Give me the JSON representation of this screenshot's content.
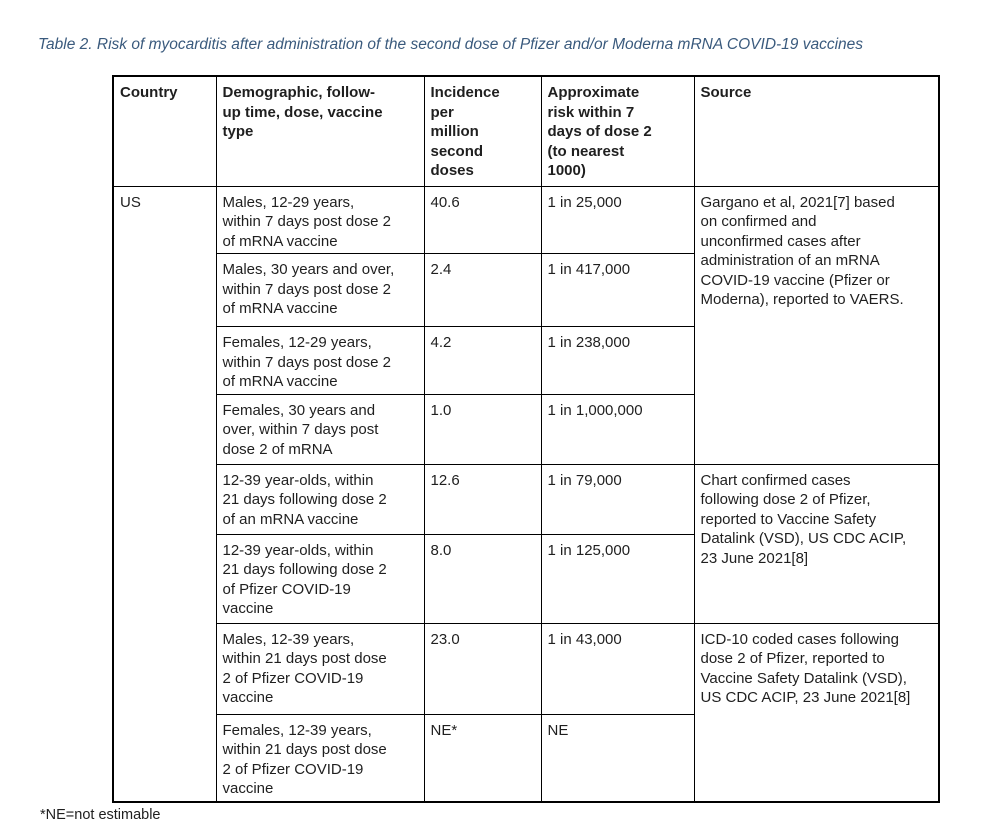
{
  "page": {
    "title": "Table 2. Risk of myocarditis after administration of the second dose of Pfizer and/or Moderna mRNA COVID-19 vaccines",
    "footnote": "*NE=not estimable"
  },
  "colors": {
    "title_text": "#3a5a7d",
    "body_text": "#1f1f1f",
    "table_border": "#000000",
    "page_background": "#ffffff"
  },
  "table": {
    "headers": {
      "country": "Country",
      "demographic": "Demographic, follow-\nup time, dose, vaccine\ntype",
      "incidence": "Incidence\nper\nmillion\nsecond\ndoses",
      "risk": "Approximate\nrisk within 7\ndays of dose 2\n(to nearest\n1000)",
      "source": "Source"
    },
    "country": "US",
    "rows": [
      {
        "demographic": "Males, 12-29 years,\nwithin 7 days post dose 2\nof mRNA vaccine",
        "incidence": "40.6",
        "risk": "1 in 25,000"
      },
      {
        "demographic": "Males, 30 years and over,\nwithin 7 days post dose 2\nof mRNA vaccine",
        "incidence": "2.4",
        "risk": "1 in 417,000"
      },
      {
        "demographic": "Females, 12-29 years,\nwithin 7 days post dose 2\nof mRNA vaccine",
        "incidence": "4.2",
        "risk": "1 in 238,000"
      },
      {
        "demographic": "Females, 30 years and\nover, within 7 days post\ndose 2 of mRNA",
        "incidence": "1.0",
        "risk": "1 in 1,000,000"
      },
      {
        "demographic": "12-39 year-olds, within\n21 days following dose 2\nof an mRNA vaccine",
        "incidence": "12.6",
        "risk": "1 in 79,000"
      },
      {
        "demographic": "12-39 year-olds, within\n21 days following dose 2\nof Pfizer COVID-19\nvaccine",
        "incidence": "8.0",
        "risk": "1 in 125,000"
      },
      {
        "demographic": "Males, 12-39 years,\nwithin 21 days post dose\n2 of Pfizer COVID-19\nvaccine",
        "incidence": "23.0",
        "risk": "1 in 43,000"
      },
      {
        "demographic": "Females, 12-39 years,\nwithin 21 days post dose\n2 of Pfizer COVID-19\nvaccine",
        "incidence": "NE*",
        "risk": "NE"
      }
    ],
    "sources": [
      {
        "text": "Gargano et al, 2021[7] based\non confirmed and\nunconfirmed cases after\nadministration of an mRNA\nCOVID-19 vaccine (Pfizer or\nModerna), reported to VAERS."
      },
      {
        "text": "Chart confirmed cases\nfollowing dose 2 of Pfizer,\nreported to Vaccine Safety\nDatalink (VSD), US CDC ACIP,\n23 June 2021[8]"
      },
      {
        "text": "ICD-10 coded cases following\ndose 2 of Pfizer, reported to\nVaccine Safety Datalink (VSD),\nUS CDC ACIP, 23 June 2021[8]"
      }
    ]
  }
}
